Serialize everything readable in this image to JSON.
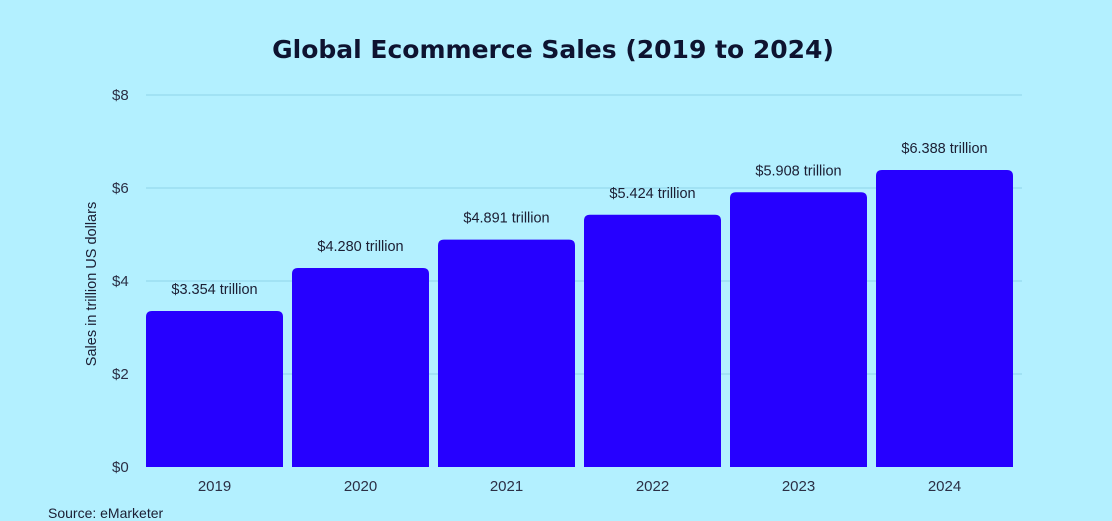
{
  "chart_data": {
    "type": "bar",
    "title": "Global Ecommerce Sales (2019 to 2024)",
    "xlabel": "",
    "ylabel": "Sales in trillion US dollars",
    "categories": [
      "2019",
      "2020",
      "2021",
      "2022",
      "2023",
      "2024"
    ],
    "values": [
      3.354,
      4.28,
      4.891,
      5.424,
      5.908,
      6.388
    ],
    "data_labels": [
      "$3.354 trillion",
      "$4.280 trillion",
      "$4.891 trillion",
      "$5.424 trillion",
      "$5.908 trillion",
      "$6.388 trillion"
    ],
    "ylim": [
      0,
      8
    ],
    "yticks": [
      0,
      2,
      4,
      6,
      8
    ],
    "ytick_labels": [
      "$0",
      "$2",
      "$4",
      "$6",
      "$8"
    ],
    "grid": true,
    "legend": "none",
    "source": "Source: eMarketer",
    "colors": {
      "background": "#b3f0ff",
      "bar": "#2600ff",
      "grid": "#8fd3ea",
      "text": "#1b1e33"
    }
  }
}
